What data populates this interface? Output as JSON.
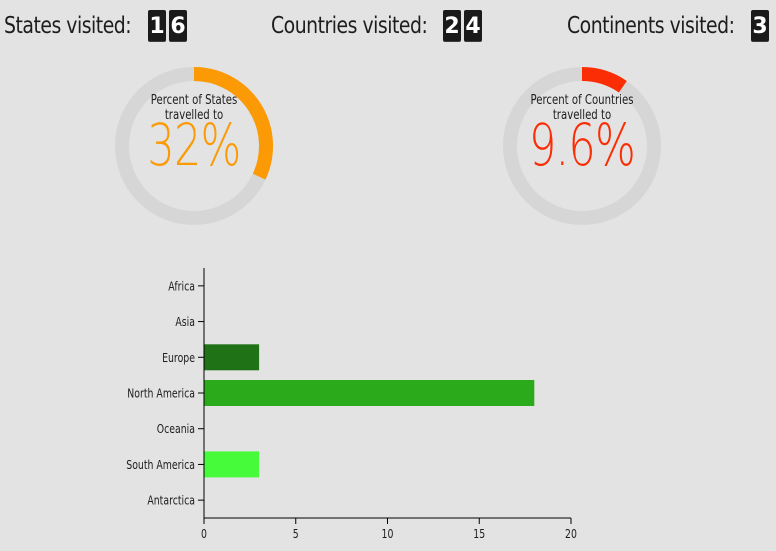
{
  "stats": {
    "states": {
      "label": "States visited:",
      "digits": [
        "1",
        "6"
      ]
    },
    "countries": {
      "label": "Countries visited:",
      "digits": [
        "2",
        "4"
      ]
    },
    "continents": {
      "label": "Continents visited:",
      "digits": [
        "3"
      ]
    }
  },
  "gauges": {
    "states": {
      "caption": "Percent of States travelled to",
      "value_text": "32%",
      "percent": 32,
      "color": "#fb9a05",
      "track_color": "#d6d6d6"
    },
    "countries": {
      "caption": "Percent of Countries travelled to",
      "value_text": "9.6%",
      "percent": 9.6,
      "color": "#fb2d05",
      "track_color": "#d6d6d6"
    }
  },
  "chart_data": {
    "type": "bar",
    "orientation": "horizontal",
    "categories": [
      "Africa",
      "Asia",
      "Europe",
      "North America",
      "Oceania",
      "South America",
      "Antarctica"
    ],
    "values": [
      0,
      0,
      3,
      18,
      0,
      3,
      0
    ],
    "colors": [
      "#2a8f1a",
      "#2a8f1a",
      "#1f7316",
      "#2bab1b",
      "#2a8f1a",
      "#45fb3a",
      "#2a8f1a"
    ],
    "xlim": [
      0,
      20
    ],
    "xticks": [
      0,
      5,
      10,
      15,
      20
    ],
    "title": "",
    "xlabel": "",
    "ylabel": ""
  }
}
